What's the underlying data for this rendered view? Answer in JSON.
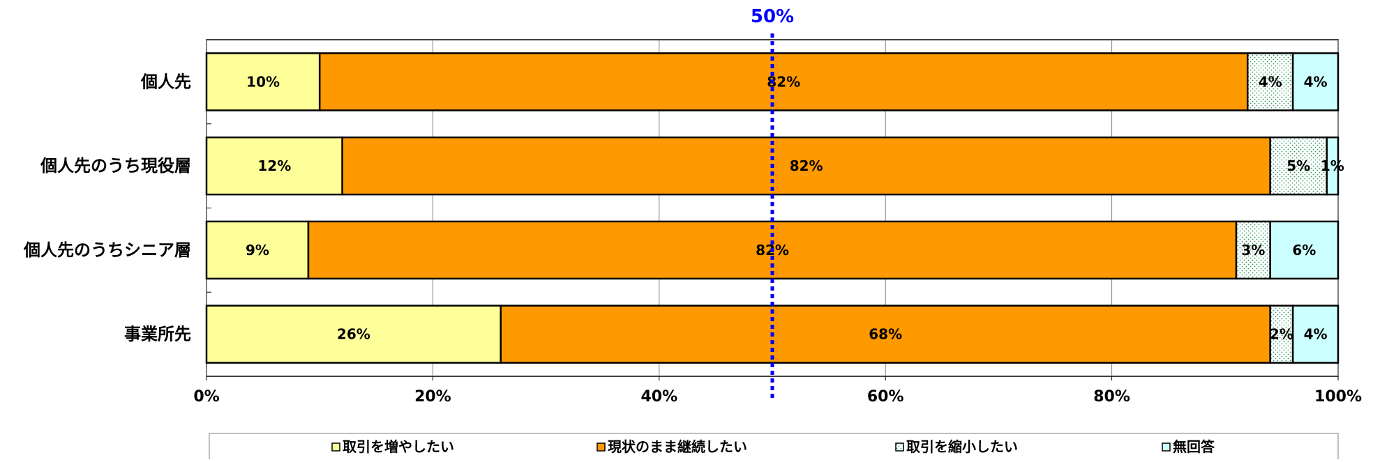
{
  "chart_data": {
    "type": "bar",
    "orientation": "horizontal",
    "stacked": true,
    "categories": [
      "個人先",
      "個人先のうち現役層",
      "個人先のうちシニア層",
      "事業所先"
    ],
    "series": [
      {
        "name": "取引を増やしたい",
        "color": "#FFFF99",
        "pattern": "solid",
        "values": [
          10,
          12,
          9,
          26
        ]
      },
      {
        "name": "現状のまま継続したい",
        "color": "#FF9900",
        "pattern": "solid",
        "values": [
          82,
          82,
          82,
          68
        ]
      },
      {
        "name": "取引を縮小したい",
        "color": "#FFFFFF",
        "pattern": "dotted-green",
        "values": [
          4,
          5,
          3,
          2
        ]
      },
      {
        "name": "無回答",
        "color": "#CCFFFF",
        "pattern": "solid",
        "values": [
          4,
          1,
          6,
          4
        ]
      }
    ],
    "value_labels": [
      [
        "10%",
        "82%",
        "4%",
        "4%"
      ],
      [
        "12%",
        "82%",
        "5%",
        "1%"
      ],
      [
        "9%",
        "82%",
        "3%",
        "6%"
      ],
      [
        "26%",
        "68%",
        "2%",
        "4%"
      ]
    ],
    "xlim": [
      0,
      100
    ],
    "x_ticks": [
      0,
      20,
      40,
      60,
      80,
      100
    ],
    "x_tick_labels": [
      "0%",
      "20%",
      "40%",
      "60%",
      "80%",
      "100%"
    ],
    "reference_line": {
      "value": 50,
      "label": "50%",
      "color": "#0000FF",
      "style": "dotted"
    },
    "grid": "vertical",
    "legend": "bottom"
  }
}
